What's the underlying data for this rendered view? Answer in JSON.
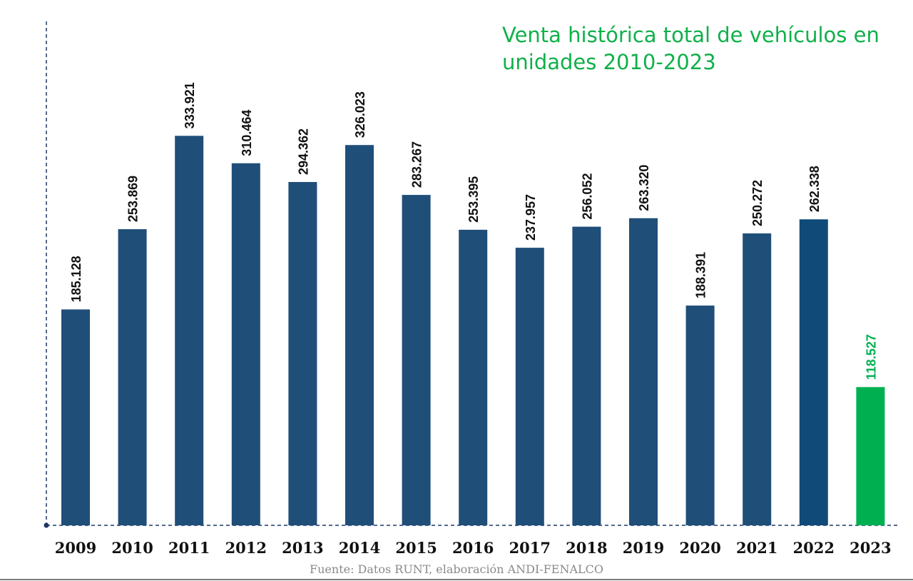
{
  "chart_data": {
    "type": "bar",
    "title": "Venta histórica total de   vehículos en\nunidades 2010-2023",
    "source": "Fuente: Datos RUNT, elaboración ANDI-FENALCO",
    "categories": [
      "2009",
      "2010",
      "2011",
      "2012",
      "2013",
      "2014",
      "2015",
      "2016",
      "2017",
      "2018",
      "2019",
      "2020",
      "2021",
      "2022",
      "2023"
    ],
    "values": [
      185128,
      253869,
      333921,
      310464,
      294362,
      326023,
      283267,
      253395,
      237957,
      256052,
      263320,
      188391,
      250272,
      262338,
      118527
    ],
    "value_labels": [
      "185.128",
      "253.869",
      "333.921",
      "310.464",
      "294.362",
      "326.023",
      "283.267",
      "253.395",
      "237.957",
      "256.052",
      "263.320",
      "188.391",
      "250.272",
      "262.338",
      "118.527"
    ],
    "bar_colors": [
      "#1f4e79",
      "#1f4e79",
      "#1f4e79",
      "#1f4e79",
      "#1f4e79",
      "#1f4e79",
      "#1f4e79",
      "#1f4e79",
      "#1f4e79",
      "#1f4e79",
      "#1f4e79",
      "#1f4e79",
      "#1f4e79",
      "#0f4a78",
      "#00b050"
    ],
    "label_colors": [
      "#111111",
      "#111111",
      "#111111",
      "#111111",
      "#111111",
      "#111111",
      "#111111",
      "#111111",
      "#111111",
      "#111111",
      "#111111",
      "#111111",
      "#111111",
      "#111111",
      "#00b050"
    ],
    "xlabel": "",
    "ylabel": "",
    "ylim": [
      0,
      410000
    ],
    "grid": false,
    "axis_color": "#1f3864",
    "title_color": "#10b04a"
  }
}
